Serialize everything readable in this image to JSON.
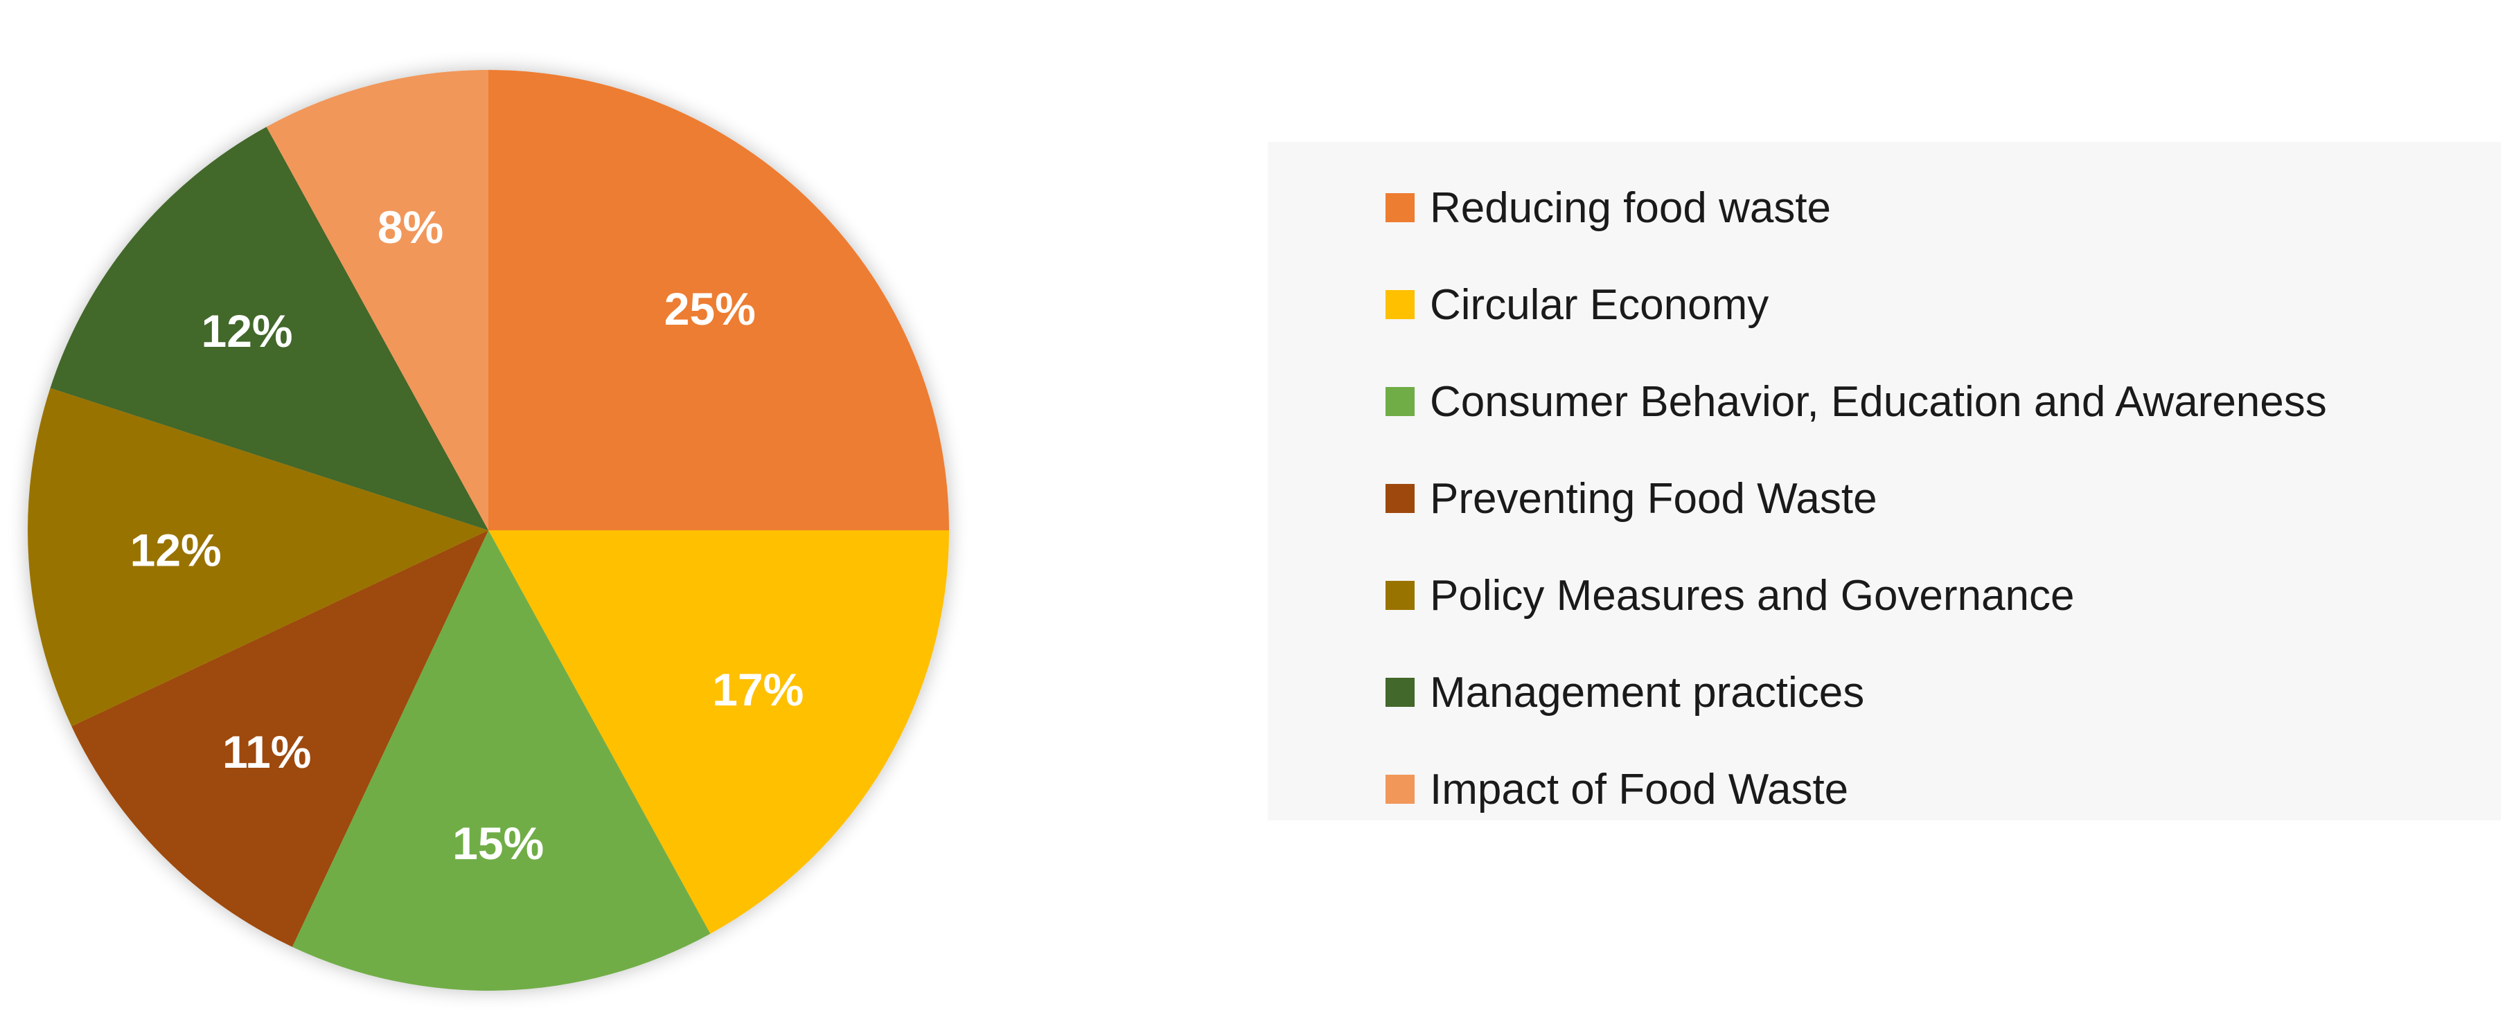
{
  "chart_data": {
    "type": "pie",
    "title": "",
    "legend_position": "right",
    "slices": [
      {
        "label": "Reducing food waste",
        "value": 25,
        "display": "25%",
        "color": "#ed7d31"
      },
      {
        "label": "Circular Economy",
        "value": 17,
        "display": "17%",
        "color": "#ffc000"
      },
      {
        "label": "Consumer Behavior, Education and Awareness",
        "value": 15,
        "display": "15%",
        "color": "#70ad47"
      },
      {
        "label": "Preventing Food Waste",
        "value": 11,
        "display": "11%",
        "color": "#9e480e"
      },
      {
        "label": "Policy Measures and Governance",
        "value": 12,
        "display": "12%",
        "color": "#997300"
      },
      {
        "label": "Management practices",
        "value": 12,
        "display": "12%",
        "color": "#43682b"
      },
      {
        "label": "Impact of Food Waste",
        "value": 8,
        "display": "8%",
        "color": "#f1975a"
      }
    ]
  },
  "legend": {
    "items": [
      {
        "label": "Reducing food waste",
        "color": "#ed7d31"
      },
      {
        "label": "Circular Economy",
        "color": "#ffc000"
      },
      {
        "label": "Consumer Behavior, Education and Awareness",
        "color": "#70ad47"
      },
      {
        "label": "Preventing Food Waste",
        "color": "#9e480e"
      },
      {
        "label": "Policy Measures and Governance",
        "color": "#997300"
      },
      {
        "label": "Management practices",
        "color": "#43682b"
      },
      {
        "label": "Impact of Food Waste",
        "color": "#f1975a"
      }
    ]
  }
}
